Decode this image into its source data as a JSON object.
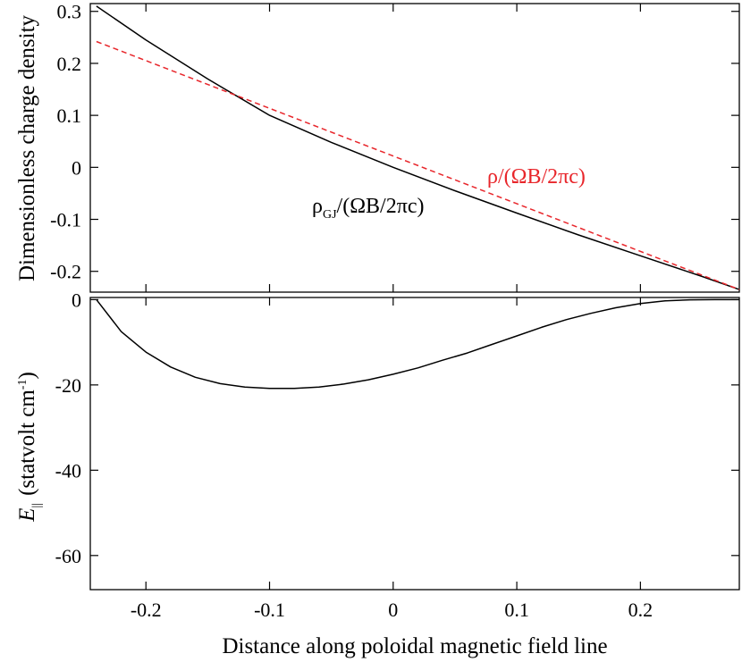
{
  "chart_data": [
    {
      "type": "line",
      "panel": "top",
      "ylabel": "Dimensionless charge density",
      "xlim": [
        -0.245,
        0.28
      ],
      "ylim": [
        -0.24,
        0.315
      ],
      "xticks": [
        -0.2,
        -0.1,
        0,
        0.1,
        0.2
      ],
      "yticks": [
        -0.2,
        -0.1,
        0,
        0.1,
        0.2,
        0.3
      ],
      "ytick_labels": [
        "-0.2",
        "-0.1",
        "0",
        "0.1",
        "0.2",
        "0.3"
      ],
      "grid": false,
      "series": [
        {
          "name": "rho_GJ",
          "color": "#000000",
          "dash": "solid",
          "label_main": "ρ",
          "label_sub": "GJ",
          "label_rest": "/(ΩB/2πc)",
          "label_color": "#000000",
          "x": [
            -0.24,
            -0.2,
            -0.15,
            -0.1,
            -0.05,
            0,
            0.05,
            0.1,
            0.15,
            0.2,
            0.25,
            0.28
          ],
          "y": [
            0.31,
            0.245,
            0.17,
            0.1,
            0.048,
            0.0,
            -0.045,
            -0.088,
            -0.13,
            -0.17,
            -0.21,
            -0.235
          ]
        },
        {
          "name": "rho",
          "color": "#e8262b",
          "dash": "dashed",
          "label_main": "ρ/(ΩB/2πc)",
          "label_color": "#e8262b",
          "x": [
            -0.24,
            0.28
          ],
          "y": [
            0.242,
            -0.235
          ]
        }
      ]
    },
    {
      "type": "line",
      "panel": "bottom",
      "ylabel_main": "E",
      "ylabel_sub": "||",
      "ylabel_rest": "(statvolt cm",
      "ylabel_sup": "-1",
      "ylabel_close": ")",
      "xlabel": "Distance along poloidal magnetic field line",
      "xlim": [
        -0.245,
        0.28
      ],
      "ylim": [
        -68,
        0.5
      ],
      "xticks": [
        -0.2,
        -0.1,
        0,
        0.1,
        0.2
      ],
      "xtick_labels": [
        "-0.2",
        "-0.1",
        "0",
        "0.1",
        "0.2"
      ],
      "yticks": [
        -60,
        -40,
        -20,
        0
      ],
      "ytick_labels": [
        "-60",
        "-40",
        "-20",
        "0"
      ],
      "grid": false,
      "series": [
        {
          "name": "E_parallel",
          "color": "#000000",
          "dash": "solid",
          "x": [
            -0.24,
            -0.22,
            -0.2,
            -0.18,
            -0.16,
            -0.14,
            -0.12,
            -0.1,
            -0.08,
            -0.06,
            -0.04,
            -0.02,
            0,
            0.02,
            0.04,
            0.06,
            0.08,
            0.1,
            0.12,
            0.14,
            0.16,
            0.18,
            0.2,
            0.22,
            0.24,
            0.26,
            0.28
          ],
          "y": [
            0,
            -7.5,
            -12.3,
            -15.8,
            -18.2,
            -19.7,
            -20.5,
            -20.8,
            -20.8,
            -20.5,
            -19.8,
            -18.8,
            -17.5,
            -16.0,
            -14.2,
            -12.5,
            -10.5,
            -8.5,
            -6.5,
            -4.7,
            -3.2,
            -1.9,
            -0.9,
            -0.3,
            -0.05,
            0,
            0
          ]
        }
      ]
    }
  ]
}
